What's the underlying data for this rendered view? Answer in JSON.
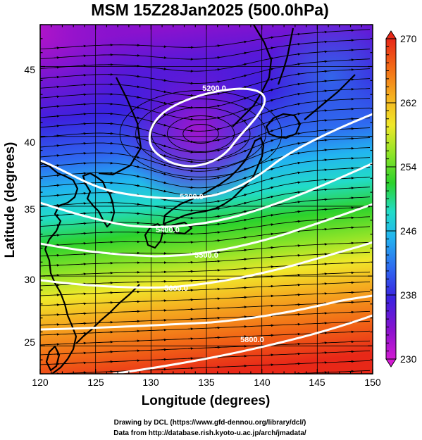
{
  "title": "MSM 15Z28Jan2025 (500.0hPa)",
  "xlabel": "Longitude (degrees)",
  "ylabel": "Latitude  (degrees)",
  "x_ticks": [
    "120",
    "125",
    "130",
    "135",
    "140",
    "145",
    "150"
  ],
  "y_ticks": [
    "25",
    "30",
    "35",
    "40",
    "45"
  ],
  "colorbar": {
    "ticks": [
      "230",
      "238",
      "246",
      "254",
      "262",
      "270"
    ],
    "min": 230,
    "max": 270,
    "colors": [
      "#d21bd2",
      "#8a12ce",
      "#3a22e0",
      "#2f67f0",
      "#22b4f0",
      "#22dcc8",
      "#2cd22c",
      "#8ee428",
      "#f0e82a",
      "#f5b020",
      "#f26a16",
      "#e82818"
    ]
  },
  "contours": [
    {
      "label": "5200.0",
      "value": 5200
    },
    {
      "label": "5300.0",
      "value": 5300
    },
    {
      "label": "5400.0",
      "value": 5400
    },
    {
      "label": "5500.0",
      "value": 5500
    },
    {
      "label": "5600.0",
      "value": 5600
    },
    {
      "label": "5800.0",
      "value": 5800
    }
  ],
  "credits": {
    "line1": "Drawing by DCL (https://www.gfd-dennou.org/library/dcl/)",
    "line2": "Data from http://database.rish.kyoto-u.ac.jp/arch/jmadata/"
  },
  "map_extent": {
    "lon": [
      120,
      150
    ],
    "lat": [
      23,
      48
    ]
  }
}
